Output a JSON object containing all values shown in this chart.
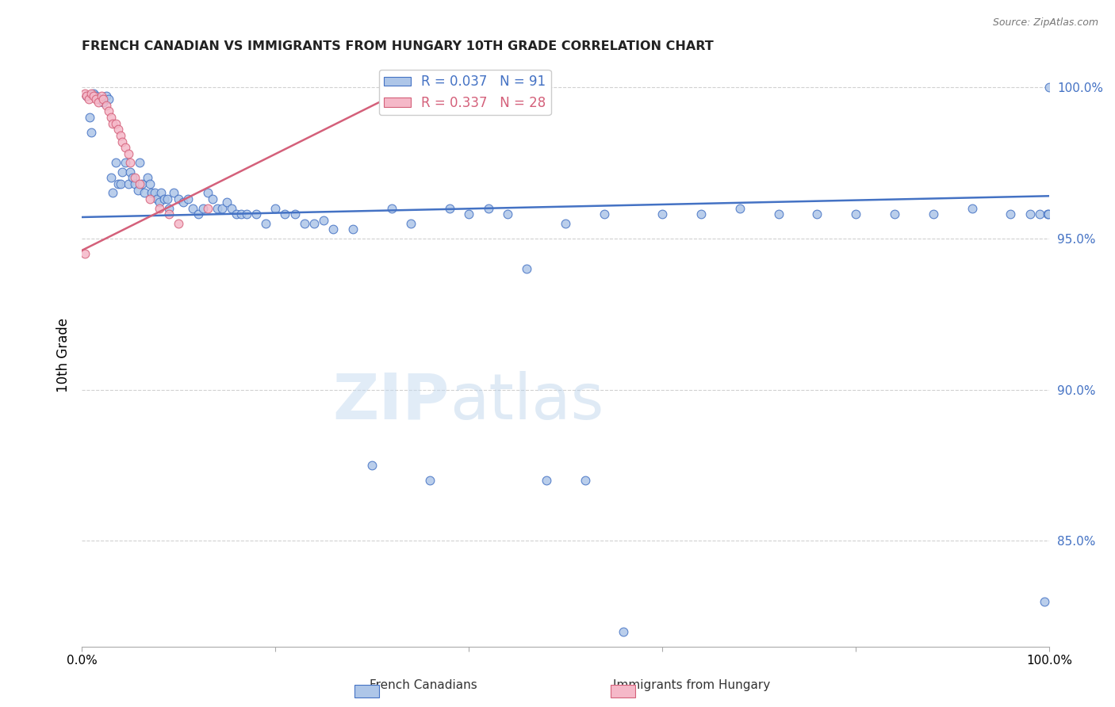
{
  "title": "FRENCH CANADIAN VS IMMIGRANTS FROM HUNGARY 10TH GRADE CORRELATION CHART",
  "source": "Source: ZipAtlas.com",
  "ylabel": "10th Grade",
  "xlim": [
    0.0,
    1.0
  ],
  "ylim": [
    0.815,
    1.008
  ],
  "yticks": [
    0.85,
    0.9,
    0.95,
    1.0
  ],
  "ytick_labels": [
    "85.0%",
    "90.0%",
    "95.0%",
    "100.0%"
  ],
  "xticks": [
    0.0,
    0.2,
    0.4,
    0.6,
    0.8,
    1.0
  ],
  "xtick_labels": [
    "0.0%",
    "",
    "",
    "",
    "",
    "100.0%"
  ],
  "blue_R": 0.037,
  "blue_N": 91,
  "pink_R": 0.337,
  "pink_N": 28,
  "blue_color": "#aec6e8",
  "pink_color": "#f5b8c8",
  "blue_line_color": "#4472c4",
  "pink_line_color": "#d4607a",
  "legend_label_blue": "French Canadians",
  "legend_label_pink": "Immigrants from Hungary",
  "watermark_zip": "ZIP",
  "watermark_atlas": "atlas",
  "blue_trend_x": [
    0.0,
    1.0
  ],
  "blue_trend_y": [
    0.957,
    0.964
  ],
  "pink_trend_x": [
    0.0,
    0.32
  ],
  "pink_trend_y": [
    0.946,
    0.997
  ],
  "blue_scatter_x": [
    0.005,
    0.008,
    0.01,
    0.012,
    0.015,
    0.018,
    0.02,
    0.022,
    0.025,
    0.028,
    0.03,
    0.032,
    0.035,
    0.038,
    0.04,
    0.042,
    0.045,
    0.048,
    0.05,
    0.052,
    0.055,
    0.058,
    0.06,
    0.062,
    0.065,
    0.068,
    0.07,
    0.072,
    0.075,
    0.078,
    0.08,
    0.082,
    0.085,
    0.088,
    0.09,
    0.095,
    0.1,
    0.105,
    0.11,
    0.115,
    0.12,
    0.125,
    0.13,
    0.135,
    0.14,
    0.145,
    0.15,
    0.155,
    0.16,
    0.165,
    0.17,
    0.18,
    0.19,
    0.2,
    0.21,
    0.22,
    0.23,
    0.24,
    0.25,
    0.26,
    0.28,
    0.3,
    0.32,
    0.34,
    0.36,
    0.38,
    0.4,
    0.42,
    0.44,
    0.46,
    0.48,
    0.5,
    0.52,
    0.54,
    0.56,
    0.6,
    0.64,
    0.68,
    0.72,
    0.76,
    0.8,
    0.84,
    0.88,
    0.92,
    0.96,
    0.98,
    0.99,
    0.995,
    0.998,
    0.999,
    1.0
  ],
  "blue_scatter_y": [
    0.997,
    0.99,
    0.985,
    0.998,
    0.997,
    0.996,
    0.996,
    0.995,
    0.997,
    0.996,
    0.97,
    0.965,
    0.975,
    0.968,
    0.968,
    0.972,
    0.975,
    0.968,
    0.972,
    0.97,
    0.968,
    0.966,
    0.975,
    0.968,
    0.965,
    0.97,
    0.968,
    0.965,
    0.965,
    0.963,
    0.962,
    0.965,
    0.963,
    0.963,
    0.96,
    0.965,
    0.963,
    0.962,
    0.963,
    0.96,
    0.958,
    0.96,
    0.965,
    0.963,
    0.96,
    0.96,
    0.962,
    0.96,
    0.958,
    0.958,
    0.958,
    0.958,
    0.955,
    0.96,
    0.958,
    0.958,
    0.955,
    0.955,
    0.956,
    0.953,
    0.953,
    0.875,
    0.96,
    0.955,
    0.87,
    0.96,
    0.958,
    0.96,
    0.958,
    0.94,
    0.87,
    0.955,
    0.87,
    0.958,
    0.82,
    0.958,
    0.958,
    0.96,
    0.958,
    0.958,
    0.958,
    0.958,
    0.958,
    0.96,
    0.958,
    0.958,
    0.958,
    0.83,
    0.958,
    0.958,
    1.0
  ],
  "pink_scatter_x": [
    0.003,
    0.005,
    0.007,
    0.01,
    0.012,
    0.015,
    0.017,
    0.02,
    0.022,
    0.025,
    0.028,
    0.03,
    0.032,
    0.035,
    0.038,
    0.04,
    0.042,
    0.045,
    0.048,
    0.05,
    0.055,
    0.06,
    0.07,
    0.08,
    0.09,
    0.1,
    0.13,
    0.003
  ],
  "pink_scatter_y": [
    0.998,
    0.997,
    0.996,
    0.998,
    0.997,
    0.996,
    0.995,
    0.997,
    0.996,
    0.994,
    0.992,
    0.99,
    0.988,
    0.988,
    0.986,
    0.984,
    0.982,
    0.98,
    0.978,
    0.975,
    0.97,
    0.968,
    0.963,
    0.96,
    0.958,
    0.955,
    0.96,
    0.945
  ]
}
